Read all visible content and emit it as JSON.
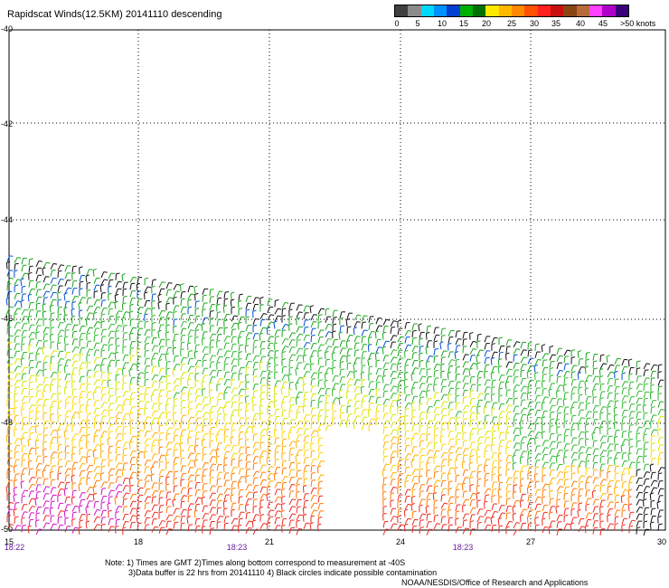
{
  "title": "Rapidscat Winds(12.5KM) 20141110 descending",
  "legend": {
    "colors": [
      "#404040",
      "#8a8a8a",
      "#00d8ff",
      "#0090ff",
      "#0040d0",
      "#00b000",
      "#007000",
      "#ffe800",
      "#ffb800",
      "#ff8800",
      "#ff5000",
      "#ff2020",
      "#c81010",
      "#8b4513",
      "#b86a3a",
      "#ff40ff",
      "#b000c8",
      "#3a007a"
    ],
    "labels": [
      "0",
      "5",
      "10",
      "15",
      "20",
      "25",
      "30",
      "35",
      "40",
      "45"
    ],
    "units": ">50 knots"
  },
  "axes": {
    "lat_labels": [
      "-40",
      "-42",
      "-44",
      "-46",
      "-48",
      "-50"
    ],
    "lon_labels": [
      "15",
      "18",
      "21",
      "24",
      "27",
      "30"
    ],
    "time_labels": [
      "18:22",
      "18:23",
      "18:23"
    ]
  },
  "notes": [
    "Note: 1) Times are GMT 2)Times along bottom correspond to measurement at -40S",
    "3)Data buffer is 22 hrs from 20141110 4) Black circles indicate possible contamination",
    "NOAA/NESDIS/Office of Research and Applications"
  ]
}
